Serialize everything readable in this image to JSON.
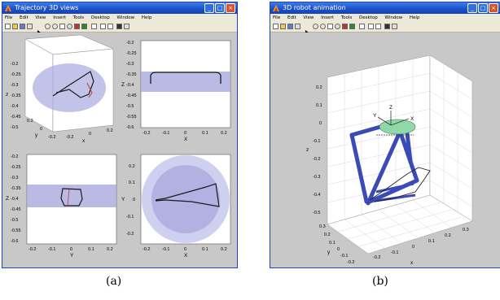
{
  "windows": [
    {
      "title": "Trajectory 3D views",
      "menu": [
        "File",
        "Edit",
        "View",
        "Insert",
        "Tools",
        "Desktop",
        "Window",
        "Help"
      ],
      "subplots": {
        "iso": {
          "z_ticks": [
            "-0.2",
            "-0.25",
            "-0.3",
            "-0.35",
            "-0.4",
            "-0.45",
            "-0.5"
          ],
          "y_ticks": [
            "0.2",
            "0",
            "-0.2"
          ],
          "x_ticks": [
            "-0.2",
            "0",
            "0.2"
          ],
          "xlabel": "x",
          "ylabel": "y",
          "zlabel": "z"
        },
        "xz": {
          "z_ticks": [
            "-0.2",
            "-0.25",
            "-0.3",
            "-0.35",
            "-0.4",
            "-0.45",
            "-0.5",
            "-0.55",
            "-0.6"
          ],
          "x_ticks": [
            "-0.2",
            "-0.1",
            "0",
            "0.1",
            "0.2"
          ],
          "xlabel": "X",
          "ylabel": "Z"
        },
        "yz": {
          "z_ticks": [
            "-0.2",
            "-0.25",
            "-0.3",
            "-0.35",
            "-0.4",
            "-0.45",
            "-0.5",
            "-0.55",
            "-0.6"
          ],
          "y_ticks": [
            "-0.2",
            "-0.1",
            "0",
            "0.1",
            "0.2"
          ],
          "xlabel": "Y",
          "ylabel": "Z"
        },
        "xy": {
          "y_ticks": [
            "0.2",
            "0.1",
            "0",
            "-0.1",
            "-0.2"
          ],
          "x_ticks": [
            "-0.2",
            "-0.1",
            "0",
            "0.1",
            "0.2"
          ],
          "xlabel": "X",
          "ylabel": "Y"
        }
      }
    },
    {
      "title": "3D robot animation",
      "menu": [
        "File",
        "Edit",
        "View",
        "Insert",
        "Tools",
        "Desktop",
        "Window",
        "Help"
      ],
      "plot": {
        "z_ticks": [
          "0.2",
          "0.1",
          "0",
          "-0.1",
          "-0.2",
          "-0.3",
          "-0.4",
          "-0.5"
        ],
        "y_ticks": [
          "0.3",
          "0.2",
          "0.1",
          "0",
          "-0.1",
          "-0.2"
        ],
        "x_ticks": [
          "-0.2",
          "-0.1",
          "0",
          "0.1",
          "0.2",
          "0.3"
        ],
        "zlabel": "z",
        "ylabel": "y",
        "xlabel": "x",
        "frame_labels": [
          "Z",
          "X",
          "Y"
        ]
      }
    }
  ],
  "captions": [
    "(a)",
    "(b)"
  ],
  "colors": {
    "workspace": "#a9a9df",
    "workspace_light": "#cfcff0",
    "platform": "#8fd8a8",
    "robot_leg": "#3a4bb8",
    "trajectory": "#2a2a2a"
  },
  "icons": [
    "matlab-icon",
    "minimize-icon",
    "maximize-icon",
    "close-icon"
  ]
}
